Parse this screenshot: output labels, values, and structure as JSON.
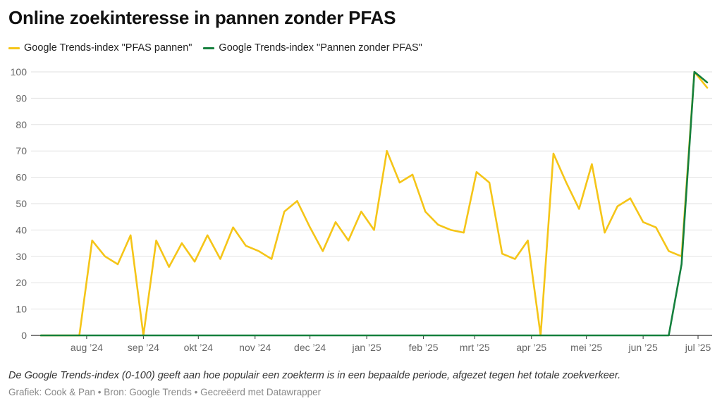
{
  "title": "Online zoekinteresse in pannen zonder PFAS",
  "note": "De Google Trends-index (0-100) geeft aan hoe populair een zoekterm is in een bepaalde periode, afgezet tegen het totale zoekverkeer.",
  "credit": "Grafiek: Cook & Pan • Bron: Google Trends • Gecreëerd met Datawrapper",
  "chart_data": {
    "type": "line",
    "title": "Online zoekinteresse in pannen zonder PFAS",
    "xlabel": "",
    "ylabel": "",
    "ylim": [
      0,
      100
    ],
    "yticks": [
      0,
      10,
      20,
      30,
      40,
      50,
      60,
      70,
      80,
      90,
      100
    ],
    "grid": true,
    "legend_position": "top-left",
    "x_tick_labels": [
      "aug '24",
      "sep '24",
      "okt '24",
      "nov '24",
      "dec '24",
      "jan '25",
      "feb '25",
      "mrt '25",
      "apr '25",
      "mei '25",
      "jun '25",
      "jul '25"
    ],
    "x": [
      "2024-07-07",
      "2024-07-14",
      "2024-07-21",
      "2024-07-28",
      "2024-08-04",
      "2024-08-11",
      "2024-08-18",
      "2024-08-25",
      "2024-09-01",
      "2024-09-08",
      "2024-09-15",
      "2024-09-22",
      "2024-09-29",
      "2024-10-06",
      "2024-10-13",
      "2024-10-20",
      "2024-10-27",
      "2024-11-03",
      "2024-11-10",
      "2024-11-17",
      "2024-11-24",
      "2024-12-01",
      "2024-12-08",
      "2024-12-15",
      "2024-12-22",
      "2024-12-29",
      "2025-01-05",
      "2025-01-12",
      "2025-01-19",
      "2025-01-26",
      "2025-02-02",
      "2025-02-09",
      "2025-02-16",
      "2025-02-23",
      "2025-03-02",
      "2025-03-09",
      "2025-03-16",
      "2025-03-23",
      "2025-03-30",
      "2025-04-06",
      "2025-04-13",
      "2025-04-20",
      "2025-04-27",
      "2025-05-04",
      "2025-05-11",
      "2025-05-18",
      "2025-05-25",
      "2025-06-01",
      "2025-06-08",
      "2025-06-15",
      "2025-06-22",
      "2025-06-29",
      "2025-07-06"
    ],
    "series": [
      {
        "name": "Google Trends-index \"PFAS pannen\"",
        "color": "#f5c518",
        "values": [
          0,
          0,
          0,
          0,
          36,
          30,
          27,
          38,
          0,
          36,
          26,
          35,
          28,
          38,
          29,
          41,
          34,
          32,
          29,
          47,
          51,
          41,
          32,
          43,
          36,
          47,
          40,
          70,
          58,
          61,
          47,
          42,
          40,
          39,
          62,
          58,
          31,
          29,
          36,
          0,
          69,
          58,
          48,
          65,
          39,
          49,
          52,
          43,
          41,
          32,
          30,
          100,
          94
        ]
      },
      {
        "name": "Google Trends-index \"Pannen zonder PFAS\"",
        "color": "#15803d",
        "values": [
          0,
          0,
          0,
          0,
          0,
          0,
          0,
          0,
          0,
          0,
          0,
          0,
          0,
          0,
          0,
          0,
          0,
          0,
          0,
          0,
          0,
          0,
          0,
          0,
          0,
          0,
          0,
          0,
          0,
          0,
          0,
          0,
          0,
          0,
          0,
          0,
          0,
          0,
          0,
          0,
          0,
          0,
          0,
          0,
          0,
          0,
          0,
          0,
          0,
          0,
          27,
          100,
          96
        ]
      }
    ]
  }
}
